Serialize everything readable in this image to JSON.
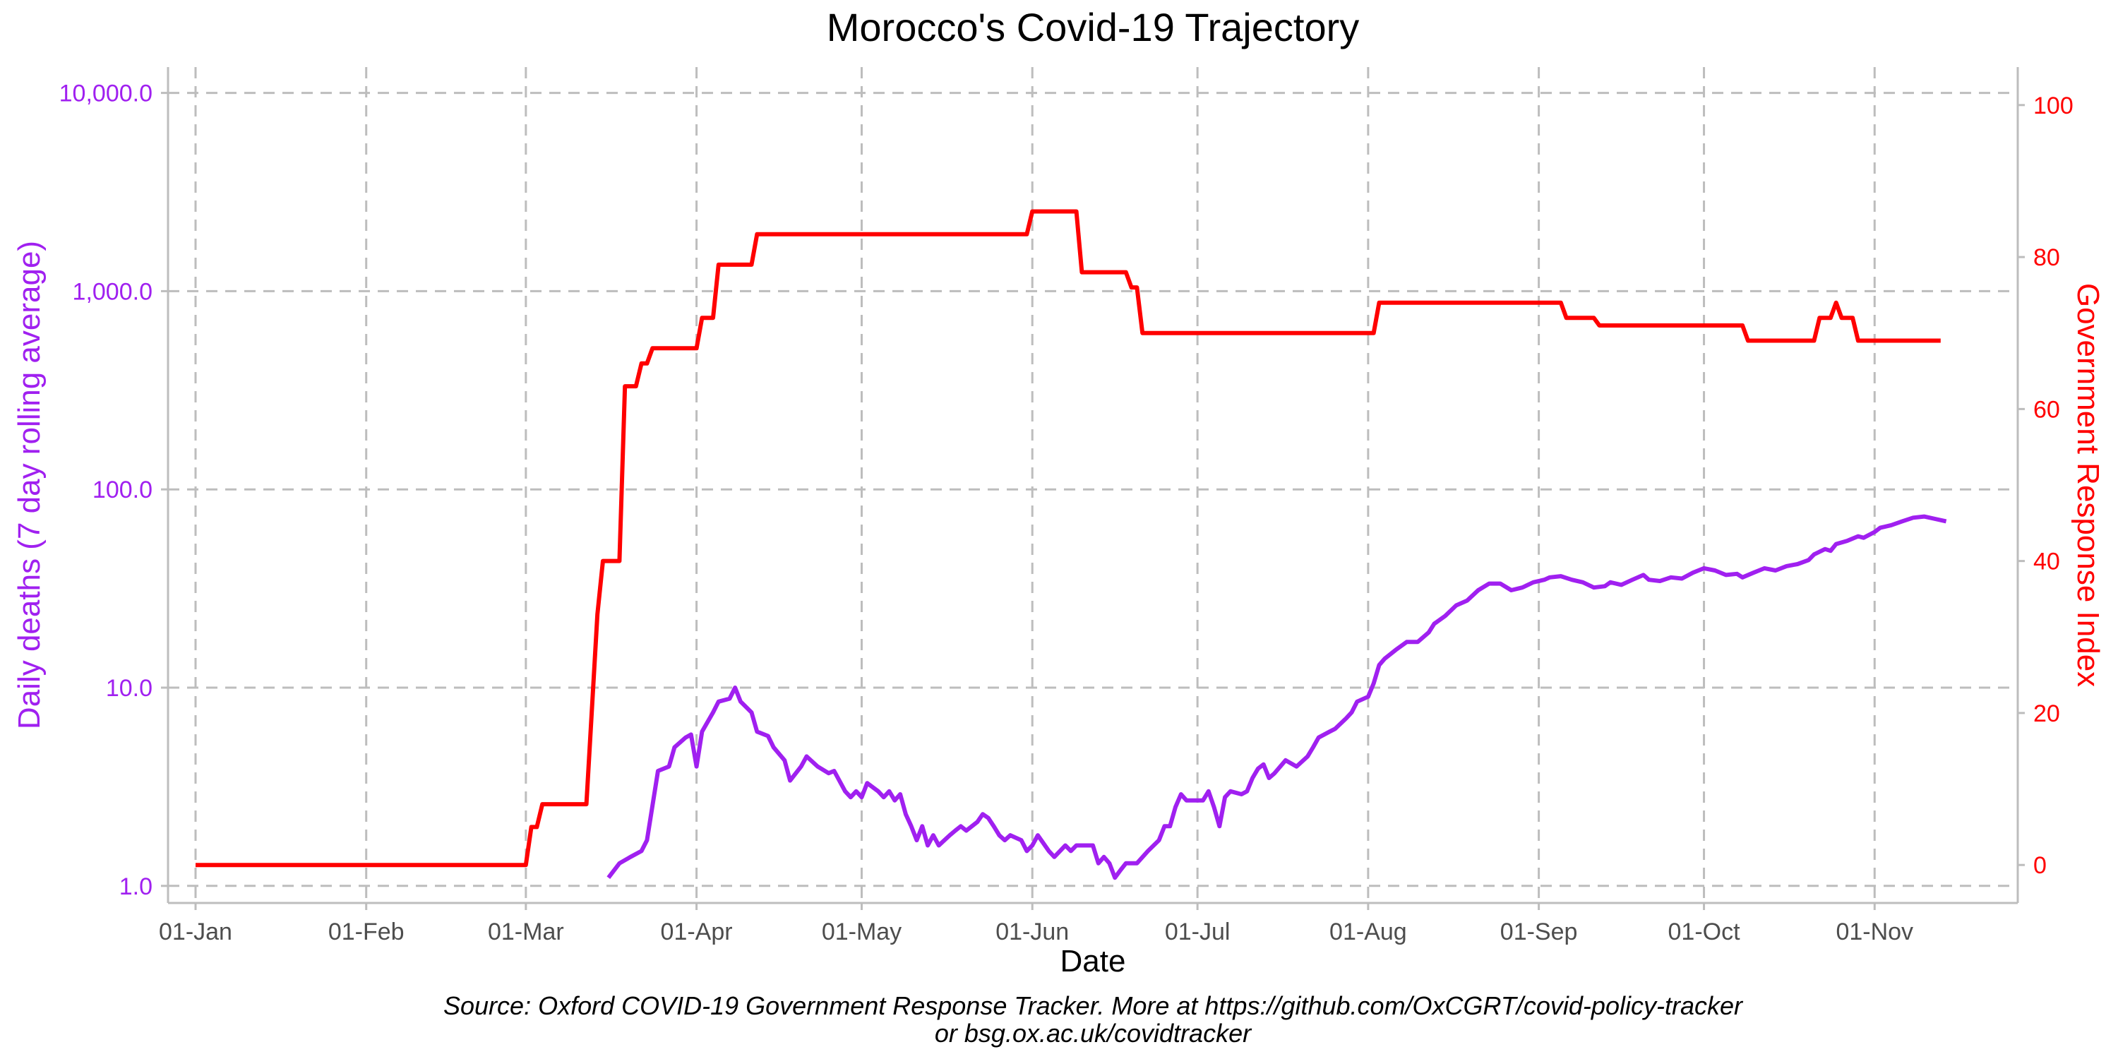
{
  "chart_data": {
    "type": "line",
    "title": "Morocco's Covid-19 Trajectory",
    "xlabel": "Date",
    "ylabel_left": "Daily deaths (7 day rolling average)",
    "ylabel_right": "Government Response Index",
    "caption_line1": "Source: Oxford COVID-19 Government Response Tracker. More at https://github.com/OxCGRT/covid-policy-tracker",
    "caption_line2": "or bsg.ox.ac.uk/covidtracker",
    "x_domain": [
      "2019-12-27",
      "2020-11-27"
    ],
    "x_ticks": [
      {
        "date": "2020-01-01",
        "label": "01-Jan"
      },
      {
        "date": "2020-02-01",
        "label": "01-Feb"
      },
      {
        "date": "2020-03-01",
        "label": "01-Mar"
      },
      {
        "date": "2020-04-01",
        "label": "01-Apr"
      },
      {
        "date": "2020-05-01",
        "label": "01-May"
      },
      {
        "date": "2020-06-01",
        "label": "01-Jun"
      },
      {
        "date": "2020-07-01",
        "label": "01-Jul"
      },
      {
        "date": "2020-08-01",
        "label": "01-Aug"
      },
      {
        "date": "2020-09-01",
        "label": "01-Sep"
      },
      {
        "date": "2020-10-01",
        "label": "01-Oct"
      },
      {
        "date": "2020-11-01",
        "label": "01-Nov"
      }
    ],
    "y_left": {
      "scale": "log10",
      "range": [
        0.82,
        13500
      ],
      "ticks": [
        1,
        10,
        100,
        1000,
        10000
      ],
      "tick_labels": [
        "1.0",
        "10.0",
        "100.0",
        "1,000.0",
        "10,000.0"
      ]
    },
    "y_right": {
      "scale": "linear",
      "range": [
        -5,
        105
      ],
      "ticks": [
        0,
        20,
        40,
        60,
        80,
        100
      ],
      "tick_labels": [
        "0",
        "20",
        "40",
        "60",
        "80",
        "100"
      ]
    },
    "grid": true,
    "series": [
      {
        "name": "Daily deaths (7 day rolling average)",
        "axis": "left",
        "color": "#a020f0",
        "points": [
          [
            "2020-03-16",
            1.1
          ],
          [
            "2020-03-18",
            1.3
          ],
          [
            "2020-03-20",
            1.4
          ],
          [
            "2020-03-22",
            1.5
          ],
          [
            "2020-03-23",
            1.7
          ],
          [
            "2020-03-25",
            3.8
          ],
          [
            "2020-03-27",
            4.0
          ],
          [
            "2020-03-28",
            5.0
          ],
          [
            "2020-03-30",
            5.6
          ],
          [
            "2020-03-31",
            5.8
          ],
          [
            "2020-04-01",
            4.0
          ],
          [
            "2020-04-02",
            6.0
          ],
          [
            "2020-04-04",
            7.5
          ],
          [
            "2020-04-05",
            8.5
          ],
          [
            "2020-04-07",
            8.8
          ],
          [
            "2020-04-08",
            10.0
          ],
          [
            "2020-04-09",
            8.5
          ],
          [
            "2020-04-11",
            7.5
          ],
          [
            "2020-04-12",
            6.0
          ],
          [
            "2020-04-14",
            5.7
          ],
          [
            "2020-04-15",
            5.0
          ],
          [
            "2020-04-17",
            4.3
          ],
          [
            "2020-04-18",
            3.4
          ],
          [
            "2020-04-20",
            4.0
          ],
          [
            "2020-04-21",
            4.5
          ],
          [
            "2020-04-23",
            4.0
          ],
          [
            "2020-04-25",
            3.7
          ],
          [
            "2020-04-26",
            3.8
          ],
          [
            "2020-04-28",
            3.0
          ],
          [
            "2020-04-29",
            2.8
          ],
          [
            "2020-04-30",
            3.0
          ],
          [
            "2020-05-01",
            2.8
          ],
          [
            "2020-05-02",
            3.3
          ],
          [
            "2020-05-04",
            3.0
          ],
          [
            "2020-05-05",
            2.8
          ],
          [
            "2020-05-06",
            3.0
          ],
          [
            "2020-05-07",
            2.7
          ],
          [
            "2020-05-08",
            2.9
          ],
          [
            "2020-05-09",
            2.3
          ],
          [
            "2020-05-10",
            2.0
          ],
          [
            "2020-05-11",
            1.7
          ],
          [
            "2020-05-12",
            2.0
          ],
          [
            "2020-05-13",
            1.6
          ],
          [
            "2020-05-14",
            1.8
          ],
          [
            "2020-05-15",
            1.6
          ],
          [
            "2020-05-17",
            1.8
          ],
          [
            "2020-05-18",
            1.9
          ],
          [
            "2020-05-19",
            2.0
          ],
          [
            "2020-05-20",
            1.9
          ],
          [
            "2020-05-22",
            2.1
          ],
          [
            "2020-05-23",
            2.3
          ],
          [
            "2020-05-24",
            2.2
          ],
          [
            "2020-05-25",
            2.0
          ],
          [
            "2020-05-26",
            1.8
          ],
          [
            "2020-05-27",
            1.7
          ],
          [
            "2020-05-28",
            1.8
          ],
          [
            "2020-05-30",
            1.7
          ],
          [
            "2020-05-31",
            1.5
          ],
          [
            "2020-06-01",
            1.6
          ],
          [
            "2020-06-02",
            1.8
          ],
          [
            "2020-06-04",
            1.5
          ],
          [
            "2020-06-05",
            1.4
          ],
          [
            "2020-06-07",
            1.6
          ],
          [
            "2020-06-08",
            1.5
          ],
          [
            "2020-06-09",
            1.6
          ],
          [
            "2020-06-12",
            1.6
          ],
          [
            "2020-06-13",
            1.3
          ],
          [
            "2020-06-14",
            1.4
          ],
          [
            "2020-06-15",
            1.3
          ],
          [
            "2020-06-16",
            1.1
          ],
          [
            "2020-06-17",
            1.2
          ],
          [
            "2020-06-18",
            1.3
          ],
          [
            "2020-06-19",
            1.3
          ],
          [
            "2020-06-20",
            1.3
          ],
          [
            "2020-06-22",
            1.5
          ],
          [
            "2020-06-24",
            1.7
          ],
          [
            "2020-06-25",
            2.0
          ],
          [
            "2020-06-26",
            2.0
          ],
          [
            "2020-06-27",
            2.5
          ],
          [
            "2020-06-28",
            2.9
          ],
          [
            "2020-06-29",
            2.7
          ],
          [
            "2020-07-02",
            2.7
          ],
          [
            "2020-07-03",
            3.0
          ],
          [
            "2020-07-04",
            2.5
          ],
          [
            "2020-07-05",
            2.0
          ],
          [
            "2020-07-06",
            2.8
          ],
          [
            "2020-07-07",
            3.0
          ],
          [
            "2020-07-09",
            2.9
          ],
          [
            "2020-07-10",
            3.0
          ],
          [
            "2020-07-11",
            3.5
          ],
          [
            "2020-07-12",
            3.9
          ],
          [
            "2020-07-13",
            4.1
          ],
          [
            "2020-07-14",
            3.5
          ],
          [
            "2020-07-15",
            3.7
          ],
          [
            "2020-07-17",
            4.3
          ],
          [
            "2020-07-19",
            4.0
          ],
          [
            "2020-07-21",
            4.5
          ],
          [
            "2020-07-22",
            5.0
          ],
          [
            "2020-07-23",
            5.6
          ],
          [
            "2020-07-25",
            6.0
          ],
          [
            "2020-07-26",
            6.2
          ],
          [
            "2020-07-28",
            7.0
          ],
          [
            "2020-07-29",
            7.5
          ],
          [
            "2020-07-30",
            8.5
          ],
          [
            "2020-08-01",
            9.0
          ],
          [
            "2020-08-02",
            10.5
          ],
          [
            "2020-08-03",
            13.0
          ],
          [
            "2020-08-04",
            14.0
          ],
          [
            "2020-08-06",
            15.5
          ],
          [
            "2020-08-08",
            17.0
          ],
          [
            "2020-08-10",
            17.0
          ],
          [
            "2020-08-12",
            19.0
          ],
          [
            "2020-08-13",
            21.0
          ],
          [
            "2020-08-15",
            23.0
          ],
          [
            "2020-08-17",
            26.0
          ],
          [
            "2020-08-19",
            27.5
          ],
          [
            "2020-08-21",
            31.0
          ],
          [
            "2020-08-23",
            33.5
          ],
          [
            "2020-08-25",
            33.5
          ],
          [
            "2020-08-27",
            31.0
          ],
          [
            "2020-08-29",
            32.0
          ],
          [
            "2020-08-31",
            34.0
          ],
          [
            "2020-09-02",
            35.0
          ],
          [
            "2020-09-03",
            36.0
          ],
          [
            "2020-09-05",
            36.5
          ],
          [
            "2020-09-07",
            35.0
          ],
          [
            "2020-09-09",
            34.0
          ],
          [
            "2020-09-11",
            32.0
          ],
          [
            "2020-09-13",
            32.5
          ],
          [
            "2020-09-14",
            34.0
          ],
          [
            "2020-09-16",
            33.0
          ],
          [
            "2020-09-18",
            35.0
          ],
          [
            "2020-09-20",
            37.0
          ],
          [
            "2020-09-21",
            35.0
          ],
          [
            "2020-09-23",
            34.5
          ],
          [
            "2020-09-25",
            36.0
          ],
          [
            "2020-09-27",
            35.5
          ],
          [
            "2020-09-29",
            38.0
          ],
          [
            "2020-10-01",
            40.0
          ],
          [
            "2020-10-03",
            39.0
          ],
          [
            "2020-10-05",
            37.0
          ],
          [
            "2020-10-07",
            37.5
          ],
          [
            "2020-10-08",
            36.0
          ],
          [
            "2020-10-10",
            38.0
          ],
          [
            "2020-10-12",
            40.0
          ],
          [
            "2020-10-14",
            39.0
          ],
          [
            "2020-10-16",
            41.0
          ],
          [
            "2020-10-18",
            42.0
          ],
          [
            "2020-10-20",
            44.0
          ],
          [
            "2020-10-21",
            47.0
          ],
          [
            "2020-10-23",
            50.0
          ],
          [
            "2020-10-24",
            49.0
          ],
          [
            "2020-10-25",
            53.0
          ],
          [
            "2020-10-27",
            55.0
          ],
          [
            "2020-10-29",
            58.0
          ],
          [
            "2020-10-30",
            57.0
          ],
          [
            "2020-11-01",
            61.0
          ],
          [
            "2020-11-02",
            64.0
          ],
          [
            "2020-11-04",
            66.0
          ],
          [
            "2020-11-06",
            69.0
          ],
          [
            "2020-11-08",
            72.0
          ],
          [
            "2020-11-10",
            73.0
          ],
          [
            "2020-11-12",
            71.0
          ],
          [
            "2020-11-14",
            69.0
          ]
        ]
      },
      {
        "name": "Government Response Index",
        "axis": "right",
        "color": "#ff0000",
        "points": [
          [
            "2020-01-01",
            0
          ],
          [
            "2020-03-01",
            0
          ],
          [
            "2020-03-02",
            5
          ],
          [
            "2020-03-03",
            5
          ],
          [
            "2020-03-04",
            8
          ],
          [
            "2020-03-12",
            8
          ],
          [
            "2020-03-14",
            33
          ],
          [
            "2020-03-15",
            40
          ],
          [
            "2020-03-18",
            40
          ],
          [
            "2020-03-19",
            63
          ],
          [
            "2020-03-21",
            63
          ],
          [
            "2020-03-22",
            66
          ],
          [
            "2020-03-23",
            66
          ],
          [
            "2020-03-24",
            68
          ],
          [
            "2020-04-01",
            68
          ],
          [
            "2020-04-02",
            72
          ],
          [
            "2020-04-04",
            72
          ],
          [
            "2020-04-05",
            79
          ],
          [
            "2020-04-11",
            79
          ],
          [
            "2020-04-12",
            83
          ],
          [
            "2020-05-31",
            83
          ],
          [
            "2020-06-01",
            86
          ],
          [
            "2020-06-09",
            86
          ],
          [
            "2020-06-10",
            78
          ],
          [
            "2020-06-18",
            78
          ],
          [
            "2020-06-19",
            76
          ],
          [
            "2020-06-20",
            76
          ],
          [
            "2020-06-21",
            70
          ],
          [
            "2020-08-02",
            70
          ],
          [
            "2020-08-03",
            74
          ],
          [
            "2020-09-05",
            74
          ],
          [
            "2020-09-06",
            72
          ],
          [
            "2020-09-11",
            72
          ],
          [
            "2020-09-12",
            71
          ],
          [
            "2020-10-08",
            71
          ],
          [
            "2020-10-09",
            69
          ],
          [
            "2020-10-21",
            69
          ],
          [
            "2020-10-22",
            72
          ],
          [
            "2020-10-24",
            72
          ],
          [
            "2020-10-25",
            74
          ],
          [
            "2020-10-26",
            72
          ],
          [
            "2020-10-28",
            72
          ],
          [
            "2020-10-29",
            69
          ],
          [
            "2020-11-13",
            69
          ]
        ]
      }
    ]
  }
}
